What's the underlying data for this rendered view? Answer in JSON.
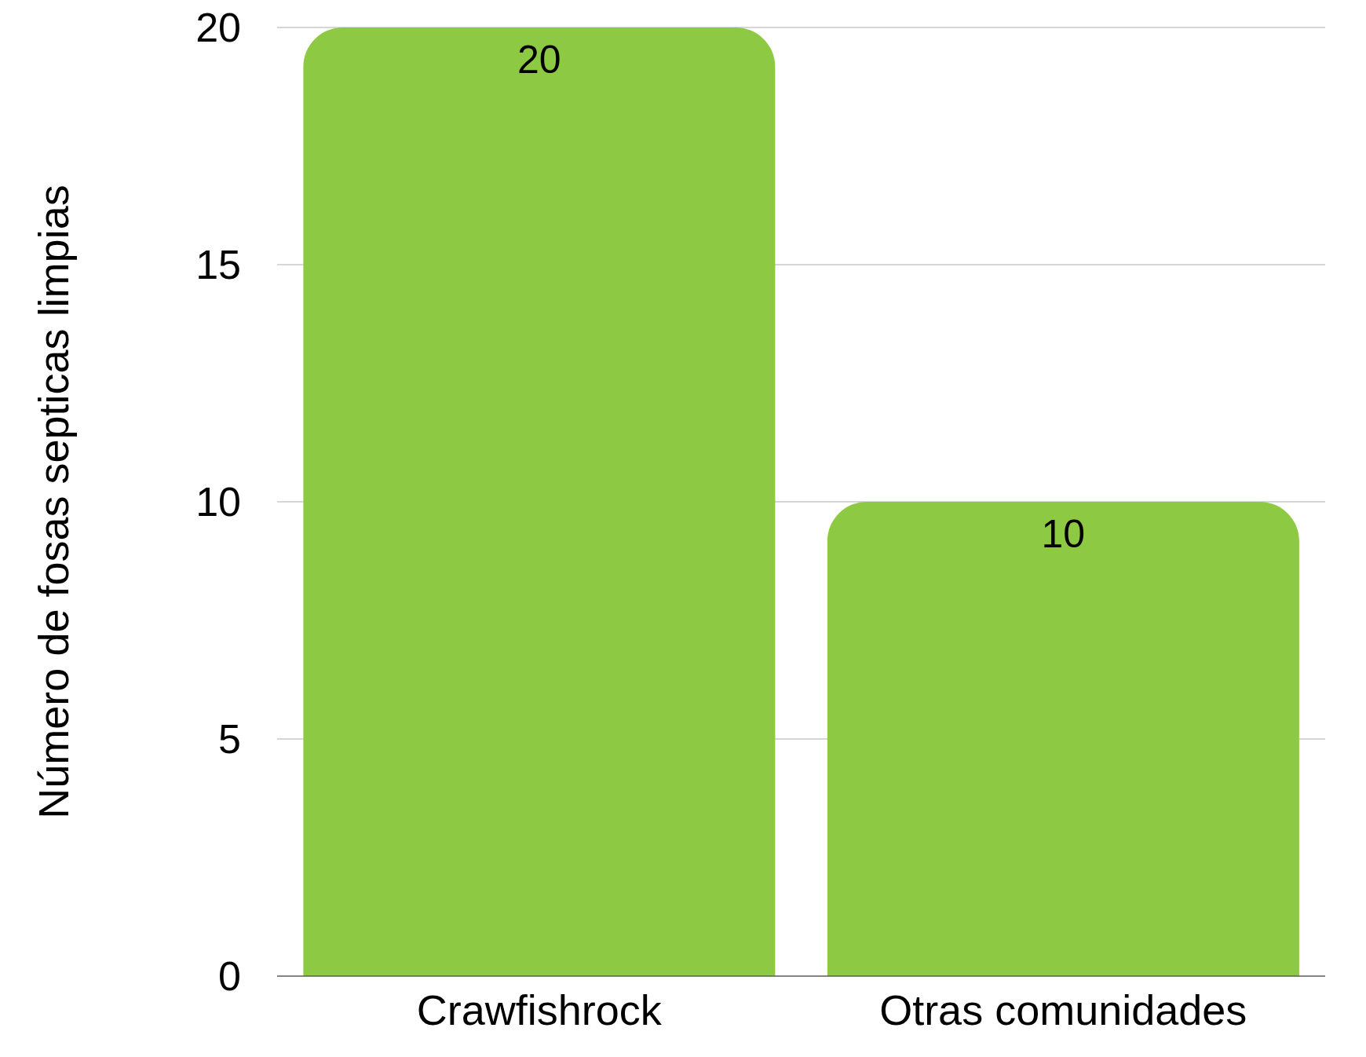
{
  "chart_data": {
    "type": "bar",
    "ylabel": "Número de fosas septicas limpias",
    "categories": [
      "Crawfishrock",
      "Otras comunidades"
    ],
    "values": [
      20,
      10
    ],
    "color": "#8dc942",
    "ylim": [
      0,
      20
    ],
    "yticks": [
      0,
      5,
      10,
      15,
      20
    ],
    "grid": "y",
    "data_labels": true
  }
}
